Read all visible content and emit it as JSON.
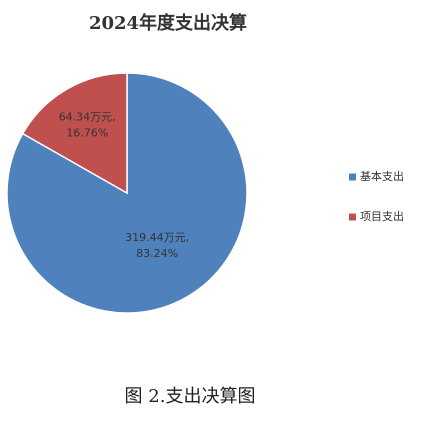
{
  "chart_data": {
    "type": "pie",
    "title": "2024年度支出决算",
    "categories": [
      "基本支出",
      "项目支出"
    ],
    "values": [
      319.44,
      64.34
    ],
    "value_labels": [
      [
        "319.44万元,",
        "83.24%"
      ],
      [
        "64.34万元,",
        "16.76%"
      ]
    ],
    "colors": [
      "#4f81bd",
      "#c0504d"
    ],
    "caption": "图 2.支出决算图"
  }
}
